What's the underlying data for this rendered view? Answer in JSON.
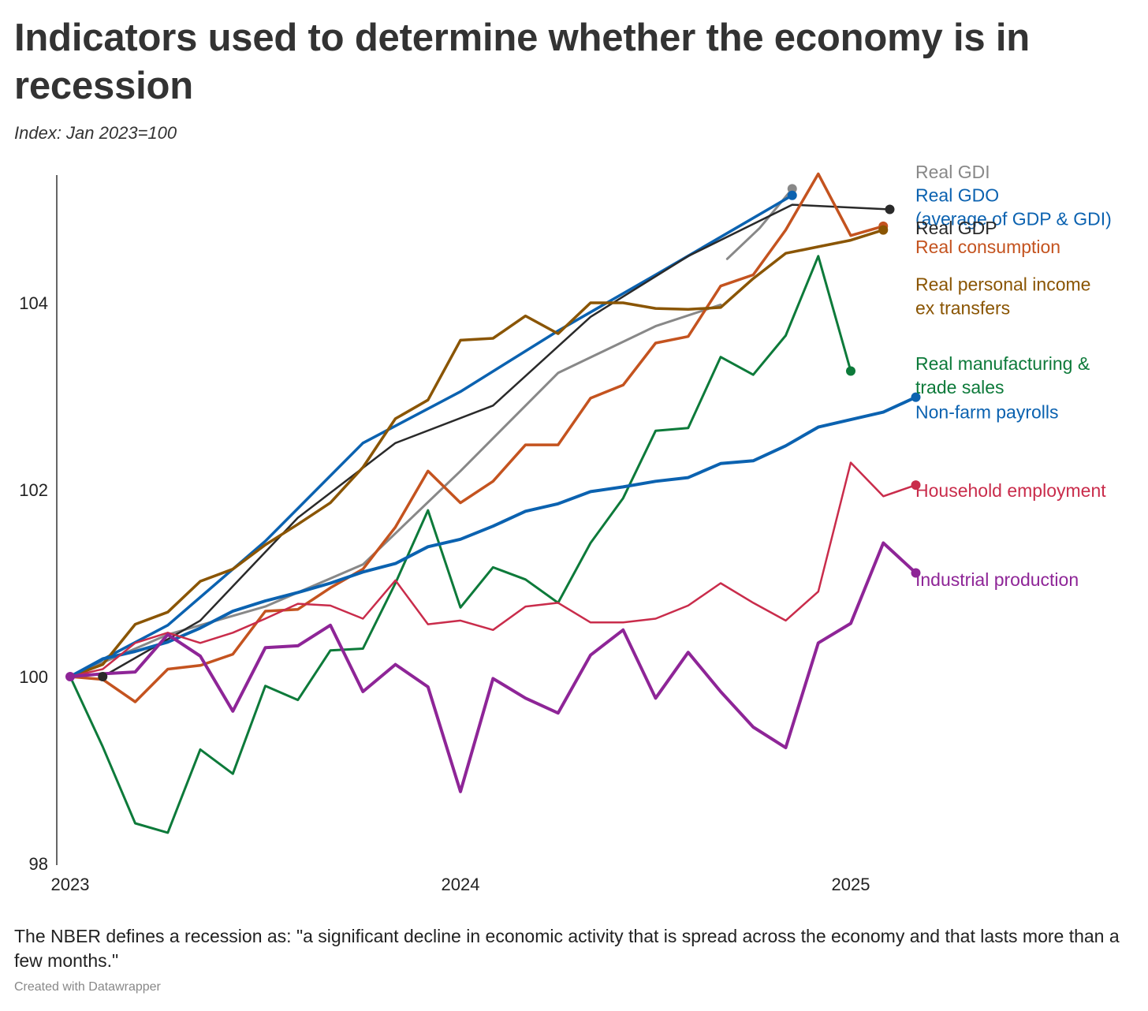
{
  "title": "Indicators used to determine whether the economy is in recession",
  "subtitle": "Index: Jan 2023=100",
  "note": "The NBER defines a recession as: \"a significant decline in economic activity that is spread across the economy and that lasts more than a few months.\"",
  "credit": "Created with Datawrapper",
  "chart_data": {
    "type": "line",
    "x_unit": "months since Jan 2023",
    "x_ticks": [
      {
        "value": 0,
        "label": "2023"
      },
      {
        "value": 12,
        "label": "2024"
      },
      {
        "value": 24,
        "label": "2025"
      }
    ],
    "y_ticks": [
      98,
      100,
      102,
      104
    ],
    "ylim": [
      98,
      105.4
    ],
    "xlim": [
      0,
      26
    ],
    "grid": false,
    "legend": "direct labels at line ends (right)",
    "series": [
      {
        "name": "Real GDI",
        "color": "#888888",
        "width": 3,
        "points": [
          [
            0,
            100
          ],
          [
            3,
            100.45
          ],
          [
            6,
            100.75
          ],
          [
            9,
            101.2
          ],
          [
            12,
            102.2
          ],
          [
            15,
            103.25
          ],
          [
            18,
            103.75
          ],
          [
            20,
            103.98
          ]
        ],
        "extra_segment": [
          [
            20.2,
            104.47
          ],
          [
            21.2,
            104.8
          ],
          [
            22.2,
            105.22
          ]
        ],
        "end_marker": true,
        "label_lines": [
          "Real GDI"
        ],
        "label_value": 105.4
      },
      {
        "name": "Real GDO (average of GDP & GDI)",
        "color": "#0b62b0",
        "width": 3.5,
        "points": [
          [
            0,
            100
          ],
          [
            3,
            100.55
          ],
          [
            6,
            101.45
          ],
          [
            9,
            102.5
          ],
          [
            12,
            103.05
          ],
          [
            15,
            103.7
          ],
          [
            18,
            104.3
          ],
          [
            22.2,
            105.15
          ]
        ],
        "end_marker": true,
        "label_lines": [
          "Real GDO",
          "(average of GDP & GDI)"
        ],
        "label_value": 105.15
      },
      {
        "name": "Real GDP",
        "color": "#2a2a2a",
        "width": 2.5,
        "points": [
          [
            1,
            100
          ],
          [
            4,
            100.6
          ],
          [
            7,
            101.7
          ],
          [
            10,
            102.5
          ],
          [
            13,
            102.9
          ],
          [
            16,
            103.85
          ],
          [
            19,
            104.5
          ],
          [
            22.2,
            105.05
          ],
          [
            25.2,
            105
          ]
        ],
        "end_marker": true,
        "marker_at_start": true,
        "label_lines": [
          "Real GDP"
        ],
        "label_value": 104.8
      },
      {
        "name": "Real consumption",
        "color": "#c4531f",
        "width": 3.5,
        "points": [
          [
            0,
            100
          ],
          [
            1,
            99.97
          ],
          [
            2,
            99.73
          ],
          [
            3,
            100.08
          ],
          [
            4,
            100.12
          ],
          [
            5,
            100.24
          ],
          [
            6,
            100.7
          ],
          [
            7,
            100.72
          ],
          [
            8,
            100.95
          ],
          [
            9,
            101.15
          ],
          [
            10,
            101.6
          ],
          [
            11,
            102.2
          ],
          [
            12,
            101.86
          ],
          [
            13,
            102.09
          ],
          [
            14,
            102.48
          ],
          [
            15,
            102.48
          ],
          [
            16,
            102.98
          ],
          [
            17,
            103.12
          ],
          [
            18,
            103.57
          ],
          [
            19,
            103.64
          ],
          [
            20,
            104.18
          ],
          [
            21,
            104.3
          ],
          [
            22,
            104.78
          ],
          [
            23,
            105.38
          ],
          [
            24,
            104.72
          ],
          [
            25,
            104.82
          ]
        ],
        "end_marker": true,
        "label_lines": [
          "Real consumption"
        ],
        "label_value": 104.6
      },
      {
        "name": "Real personal income ex transfers",
        "color": "#8a5503",
        "width": 3.5,
        "points": [
          [
            0,
            100
          ],
          [
            1,
            100.13
          ],
          [
            2,
            100.56
          ],
          [
            3,
            100.69
          ],
          [
            4,
            101.02
          ],
          [
            5,
            101.15
          ],
          [
            6,
            101.41
          ],
          [
            7,
            101.63
          ],
          [
            8,
            101.86
          ],
          [
            9,
            102.24
          ],
          [
            10,
            102.76
          ],
          [
            11,
            102.96
          ],
          [
            12,
            103.6
          ],
          [
            13,
            103.62
          ],
          [
            14,
            103.86
          ],
          [
            15,
            103.67
          ],
          [
            16,
            104
          ],
          [
            17,
            104
          ],
          [
            18,
            103.94
          ],
          [
            19,
            103.93
          ],
          [
            20,
            103.95
          ],
          [
            21,
            104.26
          ],
          [
            22,
            104.53
          ],
          [
            23,
            104.6
          ],
          [
            24,
            104.67
          ],
          [
            25,
            104.78
          ]
        ],
        "end_marker": true,
        "label_lines": [
          "Real personal income",
          "ex transfers"
        ],
        "label_value": 104.2
      },
      {
        "name": "Real manufacturing & trade sales",
        "color": "#0d7a3a",
        "width": 3,
        "points": [
          [
            0,
            100
          ],
          [
            1,
            99.25
          ],
          [
            2,
            98.43
          ],
          [
            3,
            98.33
          ],
          [
            4,
            99.22
          ],
          [
            5,
            98.96
          ],
          [
            6,
            99.9
          ],
          [
            7,
            99.75
          ],
          [
            8,
            100.28
          ],
          [
            9,
            100.3
          ],
          [
            10,
            101
          ],
          [
            11,
            101.78
          ],
          [
            12,
            100.74
          ],
          [
            13,
            101.17
          ],
          [
            14,
            101.04
          ],
          [
            15,
            100.79
          ],
          [
            16,
            101.43
          ],
          [
            17,
            101.91
          ],
          [
            18,
            102.63
          ],
          [
            19,
            102.66
          ],
          [
            20,
            103.42
          ],
          [
            21,
            103.23
          ],
          [
            22,
            103.65
          ],
          [
            23,
            104.5
          ],
          [
            24,
            103.27
          ]
        ],
        "end_marker": true,
        "label_lines": [
          "Real manufacturing &",
          "trade sales"
        ],
        "label_value": 103.35
      },
      {
        "name": "Non-farm payrolls",
        "color": "#0b62b0",
        "width": 4,
        "points": [
          [
            0,
            100
          ],
          [
            1,
            100.19
          ],
          [
            2,
            100.27
          ],
          [
            3,
            100.37
          ],
          [
            4,
            100.52
          ],
          [
            5,
            100.7
          ],
          [
            6,
            100.81
          ],
          [
            7,
            100.9
          ],
          [
            8,
            101
          ],
          [
            9,
            101.12
          ],
          [
            10,
            101.21
          ],
          [
            11,
            101.39
          ],
          [
            12,
            101.47
          ],
          [
            13,
            101.61
          ],
          [
            14,
            101.77
          ],
          [
            15,
            101.85
          ],
          [
            16,
            101.98
          ],
          [
            17,
            102.03
          ],
          [
            18,
            102.09
          ],
          [
            19,
            102.13
          ],
          [
            20,
            102.28
          ],
          [
            21,
            102.31
          ],
          [
            22,
            102.47
          ],
          [
            23,
            102.67
          ],
          [
            24,
            102.75
          ],
          [
            25,
            102.83
          ],
          [
            26,
            102.99
          ]
        ],
        "end_marker": true,
        "label_lines": [
          "Non-farm payrolls"
        ],
        "label_value": 102.83
      },
      {
        "name": "Household employment",
        "color": "#c92c4b",
        "width": 2.5,
        "points": [
          [
            0,
            100
          ],
          [
            1,
            100.08
          ],
          [
            2,
            100.36
          ],
          [
            3,
            100.47
          ],
          [
            4,
            100.36
          ],
          [
            5,
            100.47
          ],
          [
            6,
            100.62
          ],
          [
            7,
            100.78
          ],
          [
            8,
            100.76
          ],
          [
            9,
            100.62
          ],
          [
            10,
            101.03
          ],
          [
            11,
            100.56
          ],
          [
            12,
            100.6
          ],
          [
            13,
            100.5
          ],
          [
            14,
            100.75
          ],
          [
            15,
            100.79
          ],
          [
            16,
            100.58
          ],
          [
            17,
            100.58
          ],
          [
            18,
            100.62
          ],
          [
            19,
            100.76
          ],
          [
            20,
            101
          ],
          [
            21,
            100.79
          ],
          [
            22,
            100.6
          ],
          [
            23,
            100.91
          ],
          [
            24,
            102.29
          ],
          [
            25,
            101.93
          ],
          [
            26,
            102.05
          ]
        ],
        "end_marker": true,
        "label_lines": [
          "Household employment"
        ],
        "label_value": 101.99
      },
      {
        "name": "Industrial production",
        "color": "#8e2597",
        "width": 4,
        "points": [
          [
            0,
            100
          ],
          [
            1,
            100.03
          ],
          [
            2,
            100.05
          ],
          [
            3,
            100.45
          ],
          [
            4,
            100.22
          ],
          [
            5,
            99.63
          ],
          [
            6,
            100.31
          ],
          [
            7,
            100.33
          ],
          [
            8,
            100.55
          ],
          [
            9,
            99.84
          ],
          [
            10,
            100.13
          ],
          [
            11,
            99.89
          ],
          [
            12,
            98.77
          ],
          [
            13,
            99.98
          ],
          [
            14,
            99.77
          ],
          [
            15,
            99.61
          ],
          [
            16,
            100.23
          ],
          [
            17,
            100.5
          ],
          [
            18,
            99.77
          ],
          [
            19,
            100.26
          ],
          [
            20,
            99.84
          ],
          [
            21,
            99.46
          ],
          [
            22,
            99.24
          ],
          [
            23,
            100.36
          ],
          [
            24,
            100.57
          ],
          [
            25,
            101.43
          ],
          [
            26,
            101.11
          ]
        ],
        "end_marker": true,
        "label_lines": [
          "Industrial production"
        ],
        "label_value": 101.04
      }
    ]
  }
}
